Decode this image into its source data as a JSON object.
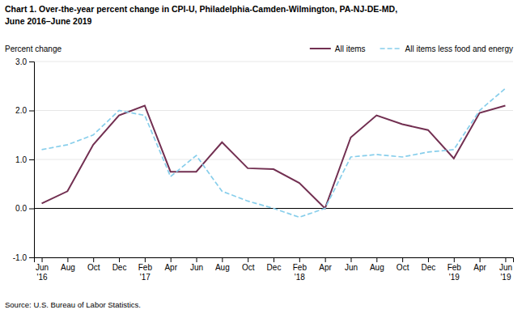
{
  "chart_data": {
    "type": "line",
    "title": "Chart 1. Over-the-year percent change in CPI-U, Philadelphia-Camden-Wilmington, PA-NJ-DE-MD,",
    "subtitle": "June 2016–June 2019",
    "y_label": "Percent change",
    "source": "Source: U.S. Bureau of Labor Statistics.",
    "categories": [
      "Jun\n'16",
      "Aug",
      "Oct",
      "Dec",
      "Feb\n'17",
      "Apr",
      "Jun",
      "Aug",
      "Oct",
      "Dec",
      "Feb\n'18",
      "Apr",
      "Jun",
      "Aug",
      "Oct",
      "Dec",
      "Feb\n'19",
      "Apr",
      "Jun\n'19"
    ],
    "series": [
      {
        "name": "All items",
        "color": "#722F51",
        "line_style": "solid",
        "values": [
          0.1,
          0.35,
          1.3,
          1.9,
          2.1,
          0.75,
          0.75,
          1.35,
          0.82,
          0.8,
          0.52,
          0.0,
          1.45,
          1.9,
          1.72,
          1.6,
          1.02,
          1.95,
          2.1
        ]
      },
      {
        "name": "All items less food and energy",
        "color": "#87CEEB",
        "line_style": "dashed",
        "values": [
          1.2,
          1.3,
          1.5,
          2.0,
          1.9,
          0.65,
          1.08,
          0.35,
          0.15,
          0.0,
          -0.18,
          0.0,
          1.05,
          1.1,
          1.05,
          1.15,
          1.2,
          2.0,
          2.45
        ]
      }
    ],
    "ylim": [
      -1.0,
      3.0
    ],
    "yticks": [
      {
        "value": -1.0,
        "label": "-1.0"
      },
      {
        "value": 0.0,
        "label": "0.0"
      },
      {
        "value": 1.0,
        "label": "1.0"
      },
      {
        "value": 2.0,
        "label": "2.0"
      },
      {
        "value": 3.0,
        "label": "3.0"
      }
    ],
    "grid": true,
    "legend": "upper right"
  }
}
